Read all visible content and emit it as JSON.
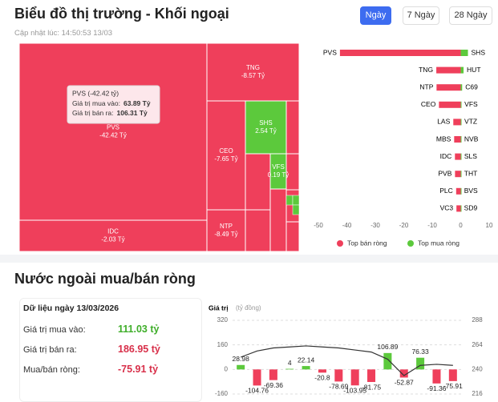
{
  "header": {
    "title": "Biểu đồ thị trường - Khối ngoại",
    "updated": "Cập nhật lúc: 14:50:53 13/03",
    "buttons": [
      "Ngày",
      "7 Ngày",
      "28 Ngày"
    ]
  },
  "section": {
    "title": "Nước ngoài mua/bán ròng",
    "date": "Dữ liệu ngày 13/03/2026",
    "rows": [
      [
        "Giá trị mua vào:",
        "111.03 tỷ"
      ],
      [
        "Giá trị bán ra:",
        "186.95 tỷ"
      ],
      [
        "Mua/bán ròng:",
        "-75.91 tỷ"
      ]
    ]
  },
  "chart_data": [
    {
      "type": "treemap",
      "categories": [
        "PVS",
        "IDC",
        "TNG",
        "CEO",
        "NTP",
        "SHS",
        "VFS"
      ],
      "values": [
        -42.42,
        -2.03,
        -8.57,
        -7.65,
        -8.49,
        2.54,
        0.19
      ],
      "value_labels": [
        "-42.42 Tỷ",
        "-2.03 Tỷ",
        "-8.57 Tỷ",
        "-7.65 Tỷ",
        "-8.49 Tỷ",
        "2.54 Tỷ",
        "0.19 Tỷ"
      ],
      "color_negative": "#ef3f5b",
      "color_positive": "#5cc93c",
      "tooltip": {
        "title": "PVS (-42.42 tỷ)",
        "lines": [
          [
            "Giá trị mua vào:",
            "63.89 Tỷ"
          ],
          [
            "Giá trị bán ra:",
            "106.31 Tỷ"
          ]
        ]
      }
    },
    {
      "type": "bar",
      "orientation": "horizontal",
      "series": [
        {
          "name": "Top bán ròng",
          "color": "#ef3f5b",
          "categories": [
            "PVS",
            "TNG",
            "NTP",
            "CEO",
            "LAS",
            "MBS",
            "IDC",
            "PVB",
            "PLC",
            "VC3"
          ],
          "values": [
            -42.42,
            -8.57,
            -8.49,
            -7.65,
            -2.6,
            -2.3,
            -2.03,
            -2.0,
            -1.6,
            -1.5
          ]
        },
        {
          "name": "Top mua ròng",
          "color": "#5cc93c",
          "categories": [
            "SHS",
            "HUT",
            "C69",
            "VFS",
            "VTZ",
            "NVB",
            "SLS",
            "THT",
            "BVS",
            "SD9"
          ],
          "values": [
            2.54,
            1.0,
            0.5,
            0.19,
            0.15,
            0.12,
            0.1,
            0.08,
            0.06,
            0.05
          ]
        }
      ],
      "xlim": [
        -50,
        10
      ],
      "xticks": [
        -50,
        -40,
        -30,
        -20,
        -10,
        0,
        10
      ],
      "legend": "bottom"
    },
    {
      "type": "combo",
      "ylabel": "Giá trị",
      "ylabel_unit": "(tỷ đồng)",
      "ylim": [
        -160,
        320
      ],
      "yticks": [
        -160,
        0,
        160,
        320
      ],
      "y2lim": [
        216,
        288
      ],
      "y2ticks": [
        216,
        240,
        264,
        288
      ],
      "grid": true,
      "series": [
        {
          "type": "bar",
          "color_positive": "#5cc93c",
          "color_negative": "#ef3f5b",
          "values": [
            28.98,
            -104.76,
            -69.36,
            4,
            22.14,
            -20.8,
            -78.69,
            -103.95,
            -81.75,
            106.89,
            -52.87,
            76.33,
            -91.36,
            -75.91
          ]
        },
        {
          "type": "line",
          "axis": "y2",
          "color": "#333333",
          "values": [
            252,
            258,
            261,
            262,
            263,
            262,
            261,
            259,
            257,
            250,
            234,
            244,
            245,
            244
          ]
        }
      ]
    }
  ]
}
